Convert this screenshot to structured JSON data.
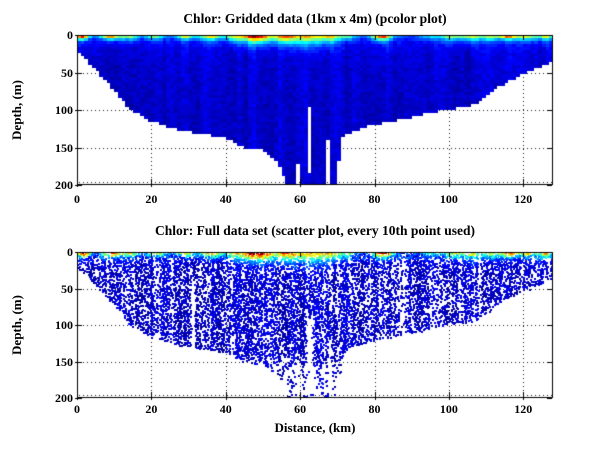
{
  "figure": {
    "background": "#ffffff",
    "axis_color": "#000000",
    "text_color": "#000000",
    "grid_style": "dotted"
  },
  "chart_data": [
    {
      "type": "heatmap",
      "title": "Chlor: Gridded data (1km x 4m) (pcolor plot)",
      "xlabel": "",
      "ylabel": "Depth, (m)",
      "colormap": "jet",
      "xlim": [
        0,
        128
      ],
      "ylim": [
        0,
        200
      ],
      "y_axis_reversed": true,
      "grid": true,
      "xticks": [
        0,
        20,
        40,
        60,
        80,
        100,
        120
      ],
      "xtick_labels": [
        "0",
        "20",
        "40",
        "60",
        "80",
        "100",
        "120"
      ],
      "yticks": [
        0,
        50,
        100,
        150,
        200
      ],
      "ytick_labels": [
        "0",
        "50",
        "100",
        "150",
        "200"
      ],
      "cell_size": {
        "x_km": 1,
        "y_m": 4
      },
      "max_depth_envelope": [
        [
          0,
          22
        ],
        [
          2,
          30
        ],
        [
          4,
          42
        ],
        [
          6,
          52
        ],
        [
          8,
          62
        ],
        [
          10,
          74
        ],
        [
          12,
          86
        ],
        [
          14,
          100
        ],
        [
          16,
          104
        ],
        [
          18,
          110
        ],
        [
          20,
          116
        ],
        [
          23,
          120
        ],
        [
          26,
          125
        ],
        [
          29,
          129
        ],
        [
          32,
          131
        ],
        [
          35,
          133
        ],
        [
          38,
          136
        ],
        [
          41,
          139
        ],
        [
          43,
          146
        ],
        [
          45,
          150
        ],
        [
          47,
          153
        ],
        [
          49,
          150
        ],
        [
          51,
          157
        ],
        [
          53,
          166
        ],
        [
          55,
          182
        ],
        [
          56.5,
          200
        ],
        [
          69.5,
          200
        ],
        [
          70.5,
          168
        ],
        [
          71.5,
          138
        ],
        [
          73,
          131
        ],
        [
          76,
          126
        ],
        [
          79,
          121
        ],
        [
          83,
          117
        ],
        [
          87,
          113
        ],
        [
          91,
          109
        ],
        [
          95,
          104
        ],
        [
          99,
          100
        ],
        [
          103,
          97
        ],
        [
          106,
          95
        ],
        [
          108,
          90
        ],
        [
          110,
          83
        ],
        [
          112,
          75
        ],
        [
          114,
          68
        ],
        [
          116,
          62
        ],
        [
          118,
          57
        ],
        [
          120,
          53
        ],
        [
          122,
          49
        ],
        [
          124,
          45
        ],
        [
          126,
          41
        ],
        [
          128,
          37
        ]
      ],
      "no_data_stripes": [
        {
          "x": 31,
          "width": 1.0,
          "from": 55,
          "to": 132
        },
        {
          "x": 59.5,
          "width": 1.2,
          "from": 172,
          "to": 200
        },
        {
          "x": 62.4,
          "width": 1.4,
          "from": 96,
          "to": 186
        },
        {
          "x": 67.8,
          "width": 0.9,
          "from": 138,
          "to": 200
        }
      ],
      "hotspot_format": "x_km, amplitude, sigma_km, depth_decay_m",
      "surface_hotspots": [
        [
          1.5,
          0.95,
          1.8,
          5
        ],
        [
          9,
          0.75,
          2.5,
          5
        ],
        [
          14,
          0.45,
          2.5,
          6
        ],
        [
          21,
          0.42,
          2.5,
          5
        ],
        [
          29,
          0.5,
          2.5,
          5
        ],
        [
          36,
          0.55,
          3,
          6
        ],
        [
          42,
          0.35,
          2,
          8
        ],
        [
          48,
          0.88,
          4.5,
          9
        ],
        [
          56,
          0.6,
          3,
          10
        ],
        [
          62,
          0.55,
          4,
          12
        ],
        [
          68,
          0.5,
          3,
          9
        ],
        [
          73,
          0.35,
          2,
          6
        ],
        [
          82,
          0.8,
          2.8,
          6
        ],
        [
          95,
          0.2,
          3,
          6
        ],
        [
          101,
          0.42,
          3,
          7
        ],
        [
          106,
          0.45,
          2.5,
          7
        ],
        [
          111,
          0.4,
          2.5,
          7
        ],
        [
          116,
          0.75,
          2.5,
          5
        ],
        [
          121,
          0.5,
          2.5,
          6
        ],
        [
          126,
          0.55,
          2,
          6
        ]
      ],
      "deep_value_color": "#0000a8",
      "render": {
        "seed": 7
      }
    },
    {
      "type": "scatter",
      "title": "Chlor: Full data set (scatter plot, every 10th point used)",
      "xlabel": "Distance, (km)",
      "ylabel": "Depth, (m)",
      "colormap": "jet",
      "xlim": [
        0,
        128
      ],
      "ylim": [
        0,
        200
      ],
      "y_axis_reversed": true,
      "grid": true,
      "xticks": [
        0,
        20,
        40,
        60,
        80,
        100,
        120
      ],
      "xtick_labels": [
        "0",
        "20",
        "40",
        "60",
        "80",
        "100",
        "120"
      ],
      "yticks": [
        0,
        50,
        100,
        150,
        200
      ],
      "ytick_labels": [
        "0",
        "50",
        "100",
        "150",
        "200"
      ],
      "max_depth_envelope": [
        [
          0,
          22
        ],
        [
          2,
          30
        ],
        [
          4,
          42
        ],
        [
          6,
          52
        ],
        [
          8,
          62
        ],
        [
          10,
          74
        ],
        [
          12,
          86
        ],
        [
          14,
          100
        ],
        [
          16,
          104
        ],
        [
          18,
          110
        ],
        [
          20,
          116
        ],
        [
          23,
          120
        ],
        [
          26,
          125
        ],
        [
          29,
          129
        ],
        [
          32,
          131
        ],
        [
          35,
          133
        ],
        [
          38,
          136
        ],
        [
          41,
          139
        ],
        [
          43,
          146
        ],
        [
          45,
          150
        ],
        [
          47,
          153
        ],
        [
          49,
          150
        ],
        [
          51,
          157
        ],
        [
          53,
          166
        ],
        [
          55,
          182
        ],
        [
          56.5,
          200
        ],
        [
          69.5,
          200
        ],
        [
          70.5,
          168
        ],
        [
          71.5,
          138
        ],
        [
          73,
          131
        ],
        [
          76,
          126
        ],
        [
          79,
          121
        ],
        [
          83,
          117
        ],
        [
          87,
          113
        ],
        [
          91,
          109
        ],
        [
          95,
          104
        ],
        [
          99,
          100
        ],
        [
          103,
          97
        ],
        [
          106,
          95
        ],
        [
          108,
          90
        ],
        [
          110,
          83
        ],
        [
          112,
          75
        ],
        [
          114,
          68
        ],
        [
          116,
          62
        ],
        [
          118,
          57
        ],
        [
          120,
          53
        ],
        [
          122,
          49
        ],
        [
          124,
          45
        ],
        [
          126,
          41
        ],
        [
          128,
          37
        ]
      ],
      "no_data_stripes": [
        {
          "x": 31,
          "width": 1.0,
          "from": 40,
          "to": 132
        },
        {
          "x": 59.5,
          "width": 1.2,
          "from": 150,
          "to": 200
        },
        {
          "x": 62.4,
          "width": 1.4,
          "from": 90,
          "to": 200
        },
        {
          "x": 67.8,
          "width": 0.9,
          "from": 120,
          "to": 200
        }
      ],
      "surface_hotspots": [
        [
          1.5,
          0.95,
          1.8,
          5
        ],
        [
          9,
          0.75,
          2.5,
          5
        ],
        [
          14,
          0.45,
          2.5,
          6
        ],
        [
          21,
          0.42,
          2.5,
          5
        ],
        [
          29,
          0.5,
          2.5,
          5
        ],
        [
          36,
          0.55,
          3,
          6
        ],
        [
          42,
          0.35,
          2,
          8
        ],
        [
          48,
          0.88,
          4.5,
          9
        ],
        [
          56,
          0.6,
          3,
          10
        ],
        [
          62,
          0.55,
          4,
          12
        ],
        [
          68,
          0.5,
          3,
          9
        ],
        [
          73,
          0.35,
          2,
          6
        ],
        [
          82,
          0.8,
          2.8,
          6
        ],
        [
          95,
          0.2,
          3,
          6
        ],
        [
          101,
          0.42,
          3,
          7
        ],
        [
          106,
          0.45,
          2.5,
          7
        ],
        [
          111,
          0.4,
          2.5,
          7
        ],
        [
          116,
          0.75,
          2.5,
          5
        ],
        [
          121,
          0.5,
          2.5,
          6
        ],
        [
          126,
          0.55,
          2,
          6
        ]
      ],
      "render": {
        "seed": 11,
        "marker_px": 2,
        "column_step_km": 0.4,
        "depth_step_m": 2.2
      }
    }
  ]
}
